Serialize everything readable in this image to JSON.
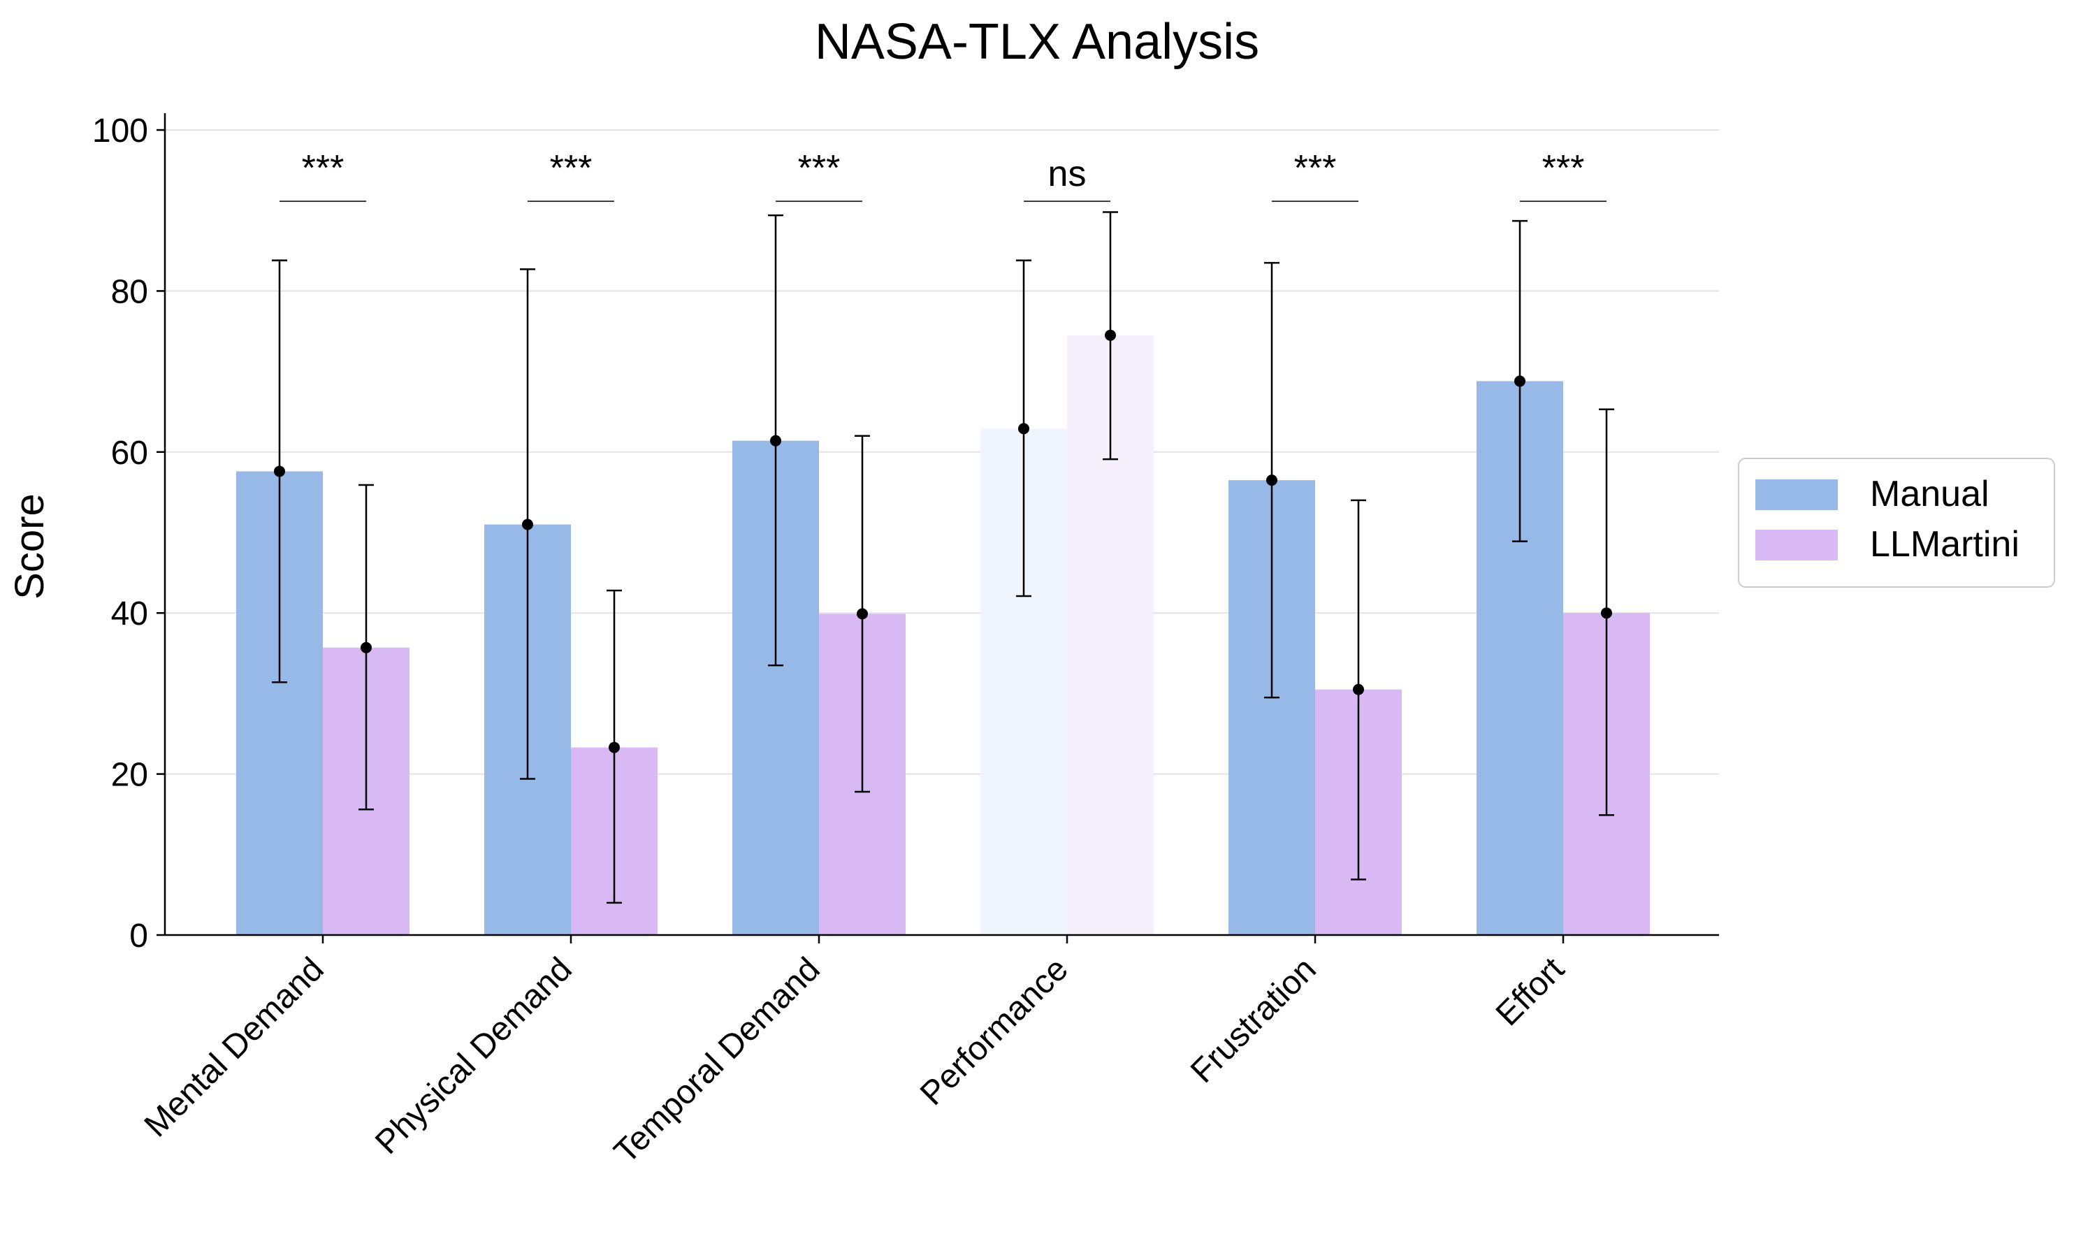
{
  "chart_data": {
    "type": "bar",
    "title": "NASA-TLX Analysis",
    "xlabel": "",
    "ylabel": "Score",
    "ylim": [
      0,
      100
    ],
    "yticks": [
      0,
      20,
      40,
      60,
      80,
      100
    ],
    "grid": "horizontal",
    "legend_placement": "right",
    "categories": [
      "Mental Demand",
      "Physical Demand",
      "Temporal Demand",
      "Performance",
      "Frustration",
      "Effort"
    ],
    "series": [
      {
        "name": "Manual",
        "color": "#97b9e8",
        "values": [
          57.6,
          51.0,
          61.4,
          62.9,
          56.5,
          68.8
        ],
        "error_low": [
          31.4,
          19.4,
          33.5,
          42.1,
          29.5,
          48.9
        ],
        "error_high": [
          83.8,
          82.7,
          89.4,
          83.8,
          83.5,
          88.7
        ]
      },
      {
        "name": "LLMartini",
        "color": "#d8b9f4",
        "values": [
          35.7,
          23.3,
          39.9,
          74.5,
          30.5,
          40.0
        ],
        "error_low": [
          15.6,
          4.0,
          17.8,
          59.1,
          6.9,
          14.9
        ],
        "error_high": [
          55.9,
          42.8,
          62.0,
          89.8,
          54.0,
          65.3
        ]
      }
    ],
    "faded_categories": [
      "Performance"
    ],
    "faded_colors": {
      "Manual": "#eef5fd",
      "LLMartini": "#f6f0fd"
    },
    "significance": [
      "***",
      "***",
      "***",
      "ns",
      "***",
      "***"
    ]
  }
}
